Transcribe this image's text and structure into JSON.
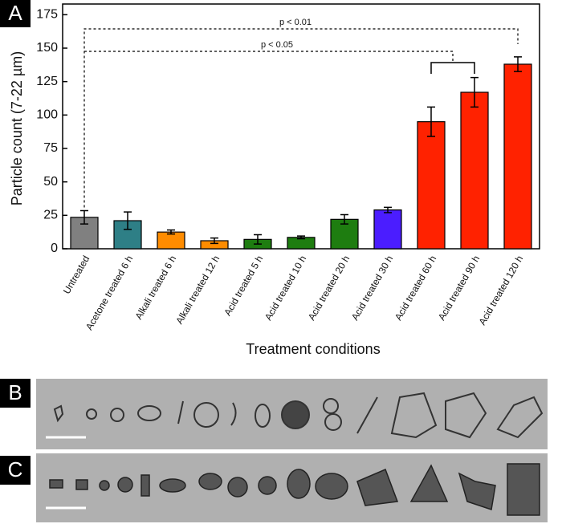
{
  "chart_data": {
    "type": "bar",
    "ylabel": "Particle count (7-22 µm)",
    "xlabel": "Treatment conditions",
    "categories": [
      "Untreated",
      "Acetone treated 6 h",
      "Alkali treated 6 h",
      "Alkali treated 12 h",
      "Acid treated 5 h",
      "Acid treated 10 h",
      "Acid treated 20 h",
      "Acid treated 30 h",
      "Acid treated 60 h",
      "Acid treated 90 h",
      "Acid treated 120 h"
    ],
    "series": [
      {
        "values": [
          23.5,
          21,
          12.5,
          6,
          7,
          8.5,
          22,
          29,
          95,
          117,
          138
        ],
        "errors": [
          5,
          6.5,
          1.5,
          2,
          3.5,
          1,
          3.5,
          2,
          11,
          11,
          5.5
        ],
        "colors": [
          "#808080",
          "#2e7f86",
          "#ff8c00",
          "#ff8c00",
          "#1e7d10",
          "#1e7d10",
          "#1e7d10",
          "#4b1dff",
          "#ff2200",
          "#ff2200",
          "#ff2200"
        ]
      }
    ],
    "ylim": [
      0,
      183
    ],
    "yticks": [
      0,
      25,
      50,
      75,
      100,
      125,
      150,
      175
    ],
    "annotations": [
      "p < 0.01",
      "p < 0.05"
    ]
  },
  "panel_labels": [
    "A",
    "B",
    "C"
  ]
}
